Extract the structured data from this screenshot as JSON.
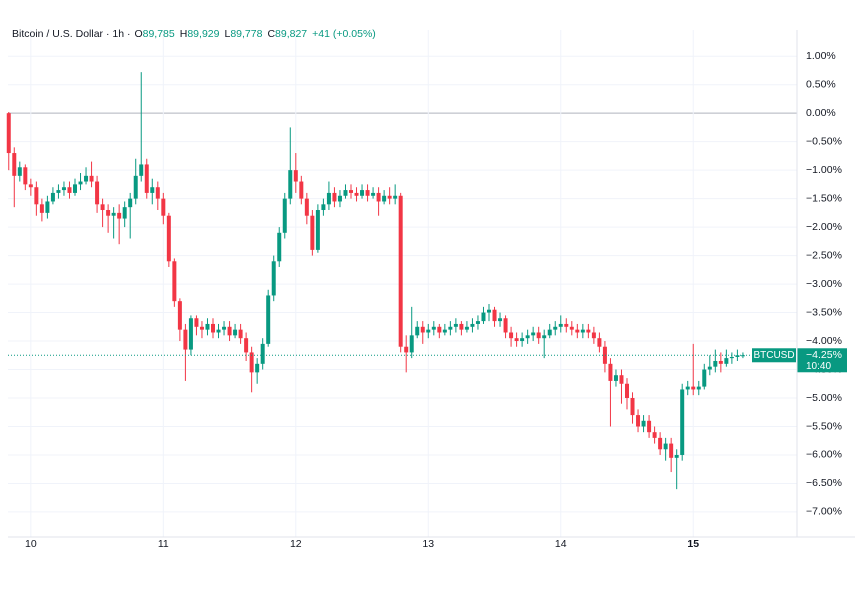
{
  "chart_data": {
    "type": "candlestick",
    "title": "Bitcoin / U.S. Dollar · 1h ·",
    "legend_items": [
      {
        "label": "O",
        "value": "89,785"
      },
      {
        "label": "H",
        "value": "89,929"
      },
      {
        "label": "L",
        "value": "89,778"
      },
      {
        "label": "C",
        "value": "89,827"
      }
    ],
    "change": "+41 (+0.05%)",
    "up_color": "#089981",
    "down_color": "#f23645",
    "grid": true,
    "ylim": [
      -7.44,
      1.46
    ],
    "yticks": [
      {
        "value": 1,
        "label": "1.00%"
      },
      {
        "value": 0.5,
        "label": "0.50%"
      },
      {
        "value": 0,
        "label": "0.00%"
      },
      {
        "value": -0.5,
        "label": "−0.50%"
      },
      {
        "value": -1,
        "label": "−1.00%"
      },
      {
        "value": -1.5,
        "label": "−1.50%"
      },
      {
        "value": -2,
        "label": "−2.00%"
      },
      {
        "value": -2.5,
        "label": "−2.50%"
      },
      {
        "value": -3,
        "label": "−3.00%"
      },
      {
        "value": -3.5,
        "label": "−3.50%"
      },
      {
        "value": -4,
        "label": "−4.00%"
      },
      {
        "value": -4.5,
        "label": "−4.50%"
      },
      {
        "value": -5,
        "label": "−5.00%"
      },
      {
        "value": -5.5,
        "label": "−5.50%"
      },
      {
        "value": -6,
        "label": "−6.00%"
      },
      {
        "value": -6.5,
        "label": "−6.50%"
      },
      {
        "value": -7,
        "label": "−7.00%"
      }
    ],
    "categories": [
      null,
      null,
      null,
      null,
      "10",
      null,
      null,
      null,
      null,
      null,
      null,
      null,
      null,
      null,
      null,
      null,
      null,
      null,
      null,
      null,
      null,
      null,
      null,
      null,
      null,
      null,
      null,
      null,
      "11",
      null,
      null,
      null,
      null,
      null,
      null,
      null,
      null,
      null,
      null,
      null,
      null,
      null,
      null,
      null,
      null,
      null,
      null,
      null,
      null,
      null,
      null,
      null,
      "12",
      null,
      null,
      null,
      null,
      null,
      null,
      null,
      null,
      null,
      null,
      null,
      null,
      null,
      null,
      null,
      null,
      null,
      null,
      null,
      null,
      null,
      null,
      null,
      "13",
      null,
      null,
      null,
      null,
      null,
      null,
      null,
      null,
      null,
      null,
      null,
      null,
      null,
      null,
      null,
      null,
      null,
      null,
      null,
      null,
      null,
      null,
      null,
      "14",
      null,
      null,
      null,
      null,
      null,
      null,
      null,
      null,
      null,
      null,
      null,
      null,
      null,
      null,
      null,
      null,
      null,
      null,
      null,
      null,
      null,
      null,
      null,
      "15",
      null,
      null,
      null,
      null,
      null,
      null,
      null,
      null,
      null
    ],
    "series": [
      {
        "name": "BTCUSD",
        "open": [
          0,
          -0.7,
          -1.1,
          -0.95,
          -1.25,
          -1.3,
          -1.6,
          -1.75,
          -1.55,
          -1.4,
          -1.35,
          -1.3,
          -1.4,
          -1.25,
          -1.2,
          -1.1,
          -1.2,
          -1.6,
          -1.7,
          -1.8,
          -1.75,
          -1.85,
          -1.65,
          -1.5,
          -1.1,
          -0.9,
          -1.4,
          -1.3,
          -1.5,
          -1.8,
          -2.6,
          -3.3,
          -3.8,
          -4.15,
          -3.6,
          -3.75,
          -3.8,
          -3.7,
          -3.85,
          -3.8,
          -3.75,
          -3.9,
          -3.8,
          -3.95,
          -4.2,
          -4.55,
          -4.4,
          -4.05,
          -3.2,
          -2.6,
          -2.1,
          -1.5,
          -1.0,
          -1.2,
          -1.5,
          -1.8,
          -2.4,
          -1.7,
          -1.6,
          -1.4,
          -1.55,
          -1.45,
          -1.35,
          -1.4,
          -1.45,
          -1.35,
          -1.45,
          -1.4,
          -1.55,
          -1.45,
          -1.5,
          -1.45,
          -4.1,
          -4.2,
          -3.9,
          -3.75,
          -3.85,
          -3.8,
          -3.75,
          -3.85,
          -3.8,
          -3.75,
          -3.7,
          -3.8,
          -3.75,
          -3.7,
          -3.65,
          -3.5,
          -3.45,
          -3.65,
          -3.6,
          -3.85,
          -3.95,
          -4.0,
          -3.95,
          -3.9,
          -3.85,
          -3.95,
          -3.9,
          -3.8,
          -3.75,
          -3.7,
          -3.75,
          -3.8,
          -3.85,
          -3.8,
          -3.85,
          -3.95,
          -4.1,
          -4.4,
          -4.7,
          -4.6,
          -4.75,
          -5.0,
          -5.3,
          -5.5,
          -5.4,
          -5.6,
          -5.7,
          -5.9,
          -5.8,
          -6.05,
          -6.0,
          -4.85,
          -4.8,
          -4.85,
          -4.8,
          -4.5,
          -4.45,
          -4.35,
          -4.4,
          -4.3,
          -4.28,
          -4.25
        ],
        "high": [
          0.02,
          -0.6,
          -0.85,
          -0.9,
          -1.15,
          -1.2,
          -1.5,
          -1.45,
          -1.3,
          -1.25,
          -1.2,
          -1.2,
          -1.15,
          -1.05,
          -0.95,
          -0.85,
          -1.1,
          -1.5,
          -1.6,
          -1.65,
          -1.6,
          -1.55,
          -1.4,
          -0.8,
          0.72,
          -0.8,
          -1.15,
          -1.2,
          -1.4,
          -1.75,
          -2.55,
          -3.25,
          -3.7,
          -3.55,
          -3.55,
          -3.65,
          -3.6,
          -3.6,
          -3.7,
          -3.65,
          -3.65,
          -3.7,
          -3.7,
          -3.85,
          -4.1,
          -4.3,
          -3.95,
          -3.1,
          -2.5,
          -2.0,
          -1.4,
          -0.25,
          -0.7,
          -1.1,
          -1.4,
          -1.7,
          -1.6,
          -1.5,
          -1.2,
          -1.3,
          -1.35,
          -1.25,
          -1.25,
          -1.3,
          -1.25,
          -1.25,
          -1.3,
          -1.3,
          -1.35,
          -1.3,
          -1.25,
          -1.4,
          -3.9,
          -3.4,
          -3.65,
          -3.65,
          -3.7,
          -3.65,
          -3.7,
          -3.7,
          -3.65,
          -3.6,
          -3.65,
          -3.65,
          -3.6,
          -3.55,
          -3.4,
          -3.35,
          -3.4,
          -3.5,
          -3.55,
          -3.75,
          -3.85,
          -3.85,
          -3.8,
          -3.75,
          -3.75,
          -3.8,
          -3.7,
          -3.65,
          -3.55,
          -3.6,
          -3.65,
          -3.7,
          -3.7,
          -3.7,
          -3.75,
          -3.85,
          -4.0,
          -4.3,
          -4.5,
          -4.5,
          -4.65,
          -4.9,
          -5.2,
          -5.3,
          -5.3,
          -5.5,
          -5.6,
          -5.7,
          -5.7,
          -5.9,
          -4.75,
          -4.7,
          -4.05,
          -4.7,
          -4.4,
          -4.25,
          -4.15,
          -4.2,
          -4.15,
          -4.2,
          -4.15,
          -4.2
        ],
        "low": [
          -1.0,
          -1.65,
          -1.2,
          -1.35,
          -1.45,
          -1.8,
          -1.9,
          -1.85,
          -1.6,
          -1.5,
          -1.45,
          -1.5,
          -1.45,
          -1.35,
          -1.25,
          -1.3,
          -1.75,
          -2.0,
          -2.1,
          -2.2,
          -2.3,
          -2.0,
          -2.2,
          -1.6,
          -1.2,
          -1.5,
          -1.6,
          -1.7,
          -1.95,
          -2.7,
          -3.4,
          -4.0,
          -4.7,
          -4.25,
          -3.9,
          -3.95,
          -3.9,
          -3.95,
          -3.95,
          -3.9,
          -4.0,
          -3.95,
          -4.05,
          -4.35,
          -4.9,
          -4.75,
          -4.5,
          -4.1,
          -3.3,
          -2.7,
          -2.2,
          -1.6,
          -1.4,
          -1.6,
          -1.95,
          -2.5,
          -2.45,
          -1.8,
          -1.7,
          -1.65,
          -1.65,
          -1.5,
          -1.5,
          -1.55,
          -1.5,
          -1.55,
          -1.5,
          -1.8,
          -1.6,
          -1.6,
          -1.6,
          -4.2,
          -4.55,
          -4.3,
          -3.95,
          -4.05,
          -3.95,
          -3.9,
          -3.95,
          -3.9,
          -3.9,
          -3.85,
          -3.9,
          -3.85,
          -3.85,
          -3.8,
          -3.7,
          -3.65,
          -3.75,
          -3.75,
          -3.95,
          -4.1,
          -4.1,
          -4.1,
          -4.05,
          -4.0,
          -4.05,
          -4.3,
          -3.95,
          -3.9,
          -3.85,
          -3.85,
          -3.9,
          -3.95,
          -3.95,
          -3.95,
          -4.05,
          -4.2,
          -4.55,
          -5.5,
          -4.8,
          -5.1,
          -5.2,
          -5.45,
          -5.6,
          -5.6,
          -5.7,
          -5.8,
          -6.0,
          -6.1,
          -6.3,
          -6.6,
          -6.1,
          -4.95,
          -4.95,
          -4.95,
          -4.85,
          -4.6,
          -4.55,
          -4.55,
          -4.45,
          -4.4,
          -4.35,
          -4.3
        ],
        "close": [
          -0.7,
          -1.1,
          -0.95,
          -1.25,
          -1.3,
          -1.6,
          -1.75,
          -1.55,
          -1.4,
          -1.35,
          -1.3,
          -1.4,
          -1.25,
          -1.2,
          -1.1,
          -1.2,
          -1.6,
          -1.7,
          -1.8,
          -1.75,
          -1.85,
          -1.65,
          -1.5,
          -1.1,
          -0.9,
          -1.4,
          -1.3,
          -1.5,
          -1.8,
          -2.6,
          -3.3,
          -3.8,
          -4.15,
          -3.6,
          -3.75,
          -3.8,
          -3.7,
          -3.85,
          -3.8,
          -3.75,
          -3.9,
          -3.8,
          -3.95,
          -4.2,
          -4.55,
          -4.4,
          -4.05,
          -3.2,
          -2.6,
          -2.1,
          -1.5,
          -1.0,
          -1.2,
          -1.5,
          -1.8,
          -2.4,
          -1.7,
          -1.6,
          -1.4,
          -1.55,
          -1.45,
          -1.35,
          -1.4,
          -1.45,
          -1.35,
          -1.45,
          -1.4,
          -1.55,
          -1.45,
          -1.5,
          -1.45,
          -4.1,
          -4.2,
          -3.9,
          -3.75,
          -3.85,
          -3.8,
          -3.75,
          -3.85,
          -3.8,
          -3.75,
          -3.7,
          -3.8,
          -3.75,
          -3.7,
          -3.65,
          -3.5,
          -3.45,
          -3.65,
          -3.6,
          -3.85,
          -3.95,
          -4.0,
          -3.95,
          -3.9,
          -3.85,
          -3.95,
          -3.9,
          -3.8,
          -3.75,
          -3.7,
          -3.75,
          -3.8,
          -3.85,
          -3.8,
          -3.85,
          -3.95,
          -4.1,
          -4.4,
          -4.7,
          -4.6,
          -4.75,
          -5.0,
          -5.3,
          -5.5,
          -5.4,
          -5.6,
          -5.7,
          -5.9,
          -5.8,
          -6.05,
          -6.0,
          -4.85,
          -4.8,
          -4.85,
          -4.8,
          -4.5,
          -4.45,
          -4.35,
          -4.4,
          -4.3,
          -4.28,
          -4.25,
          -4.25
        ]
      }
    ],
    "last": {
      "value": -4.25,
      "label": "−4.25%",
      "time": "10:40"
    }
  }
}
